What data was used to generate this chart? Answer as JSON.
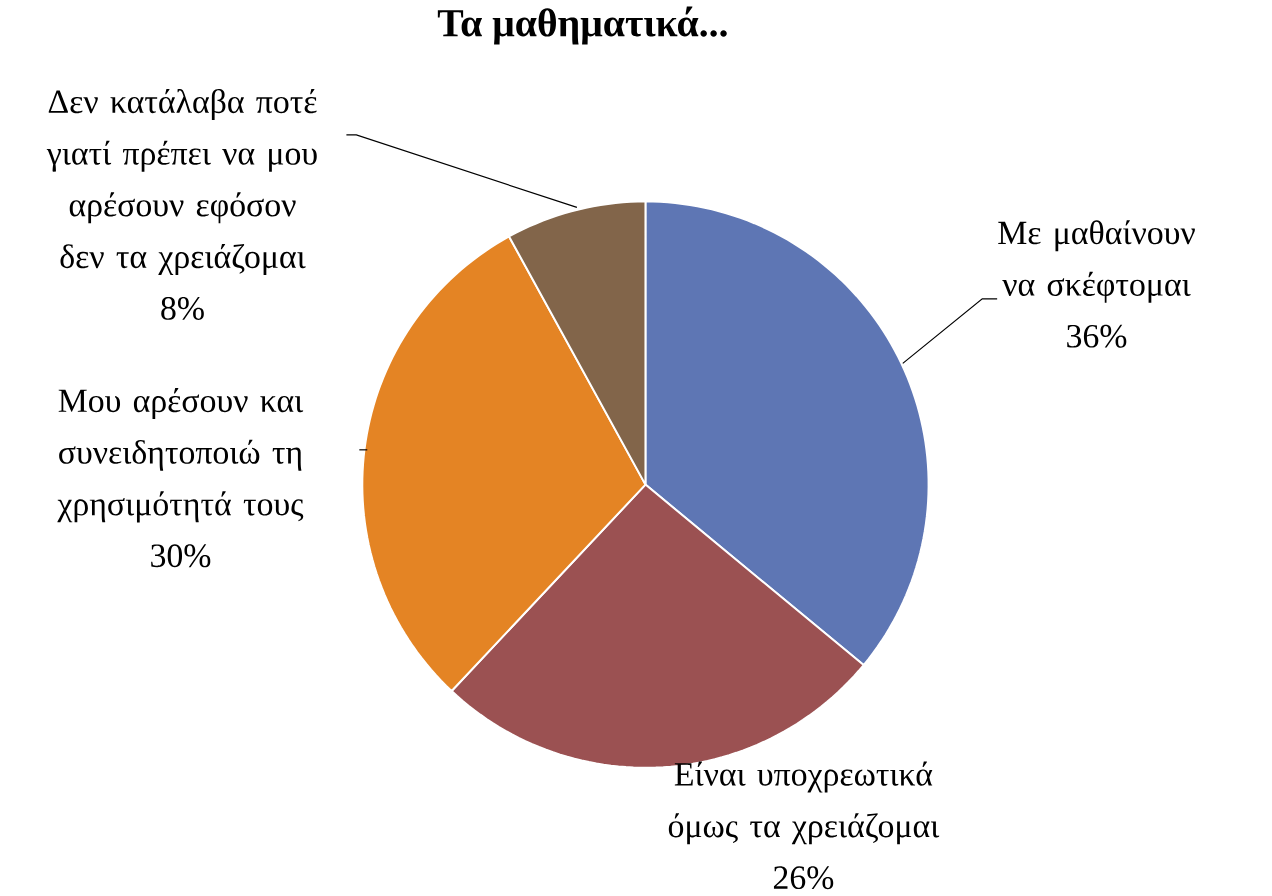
{
  "chart_data": {
    "type": "pie",
    "title": "Τα μαθηματικά...",
    "categories": [
      "Με μαθαίνουν να σκέφτομαι",
      "Είναι υποχρεωτικά όμως τα χρειάζομαι",
      "Μου αρέσουν και συνειδητοποιώ τη χρησιμότητά τους",
      "Δεν κατάλαβα ποτέ γιατί πρέπει να μου αρέσουν εφόσον δεν τα χρειάζομαι"
    ],
    "values": [
      36,
      26,
      30,
      8
    ],
    "colors": [
      "#5e76b4",
      "#9b5152",
      "#e48424",
      "#82654a"
    ],
    "value_labels": [
      "36%",
      "26%",
      "30%",
      "8%"
    ]
  }
}
